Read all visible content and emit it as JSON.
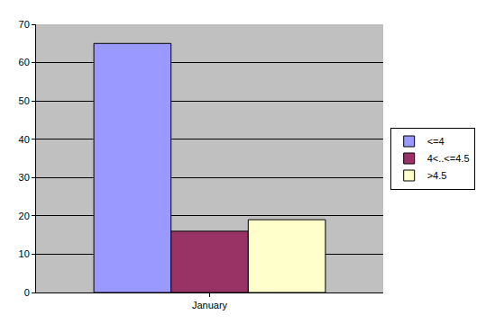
{
  "chart_data": {
    "type": "bar",
    "categories": [
      "January"
    ],
    "series": [
      {
        "name": "<=4",
        "color": "#9999ff",
        "values": [
          65
        ]
      },
      {
        "name": "4<..<=4.5",
        "color": "#993366",
        "values": [
          16
        ]
      },
      {
        "name": ">4.5",
        "color": "#ffffcc",
        "values": [
          19
        ]
      }
    ],
    "ylim": [
      0,
      70
    ],
    "yticks": [
      0,
      10,
      20,
      30,
      40,
      50,
      60,
      70
    ],
    "grid": true,
    "legend": "right"
  }
}
